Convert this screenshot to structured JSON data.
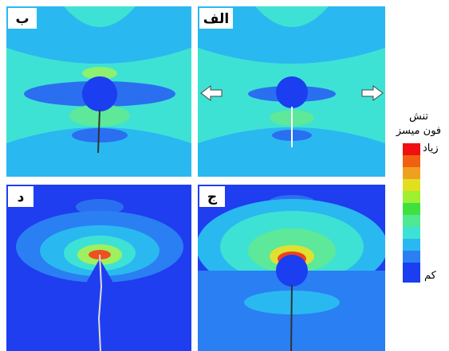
{
  "panels": [
    {
      "label": "ب"
    },
    {
      "label": "الف"
    },
    {
      "label": "د"
    },
    {
      "label": "ج"
    }
  ],
  "legend": {
    "title": "تنش",
    "subtitle": "فون میسز",
    "high": "زیاد",
    "low": "کم"
  }
}
